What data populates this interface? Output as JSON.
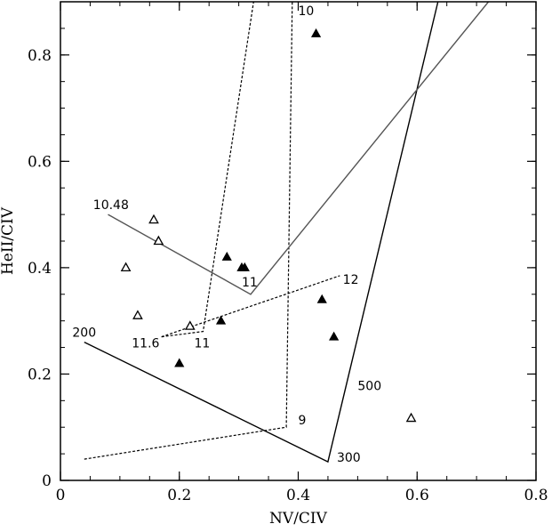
{
  "chart_data": {
    "type": "scatter",
    "xlabel": "NV/CIV",
    "ylabel": "HeII/CIV",
    "xlim": [
      0,
      0.8
    ],
    "ylim": [
      0,
      0.9
    ],
    "xticks": [
      0,
      0.2,
      0.4,
      0.6,
      0.8
    ],
    "xtick_labels": [
      "0",
      "0.2",
      "0.4",
      "0.6",
      "0.8"
    ],
    "yticks": [
      0,
      0.2,
      0.4,
      0.6,
      0.8
    ],
    "ytick_labels": [
      "0",
      "0.2",
      "0.4",
      "0.6",
      "0.8"
    ],
    "grid": false,
    "series": [
      {
        "marker": "triangle-open",
        "points": [
          [
            0.11,
            0.4
          ],
          [
            0.13,
            0.31
          ],
          [
            0.157,
            0.49
          ],
          [
            0.165,
            0.45
          ],
          [
            0.218,
            0.29
          ],
          [
            0.59,
            0.117
          ]
        ]
      },
      {
        "marker": "triangle-filled",
        "points": [
          [
            0.2,
            0.22
          ],
          [
            0.27,
            0.3
          ],
          [
            0.28,
            0.42
          ],
          [
            0.305,
            0.4
          ],
          [
            0.31,
            0.4
          ],
          [
            0.43,
            0.84
          ],
          [
            0.44,
            0.34
          ],
          [
            0.46,
            0.27
          ]
        ]
      }
    ],
    "curves": [
      {
        "style": "solid",
        "color": "#000000",
        "points": [
          [
            0.04,
            0.26
          ],
          [
            0.45,
            0.035
          ],
          [
            0.635,
            0.9
          ]
        ]
      },
      {
        "style": "dashed",
        "color": "#000000",
        "points": [
          [
            0.04,
            0.04
          ],
          [
            0.38,
            0.1
          ],
          [
            0.39,
            0.9
          ]
        ]
      },
      {
        "style": "dashed",
        "color": "#000000",
        "points": [
          [
            0.17,
            0.27
          ],
          [
            0.24,
            0.28
          ],
          [
            0.325,
            0.9
          ]
        ]
      },
      {
        "style": "dashed",
        "color": "#000000",
        "points": [
          [
            0.17,
            0.27
          ],
          [
            0.47,
            0.385
          ]
        ]
      },
      {
        "style": "solid",
        "color": "#555555",
        "points": [
          [
            0.08,
            0.5
          ],
          [
            0.32,
            0.35
          ],
          [
            0.72,
            0.9
          ]
        ]
      }
    ],
    "annotations": [
      {
        "text": "10",
        "x": 0.4,
        "y": 0.875
      },
      {
        "text": "10.48",
        "x": 0.055,
        "y": 0.51
      },
      {
        "text": "11",
        "x": 0.305,
        "y": 0.365
      },
      {
        "text": "12",
        "x": 0.475,
        "y": 0.37
      },
      {
        "text": "200",
        "x": 0.02,
        "y": 0.27
      },
      {
        "text": "11.6",
        "x": 0.12,
        "y": 0.25
      },
      {
        "text": "11",
        "x": 0.225,
        "y": 0.25
      },
      {
        "text": "500",
        "x": 0.5,
        "y": 0.17
      },
      {
        "text": "9",
        "x": 0.4,
        "y": 0.105
      },
      {
        "text": "300",
        "x": 0.465,
        "y": 0.035
      }
    ]
  }
}
